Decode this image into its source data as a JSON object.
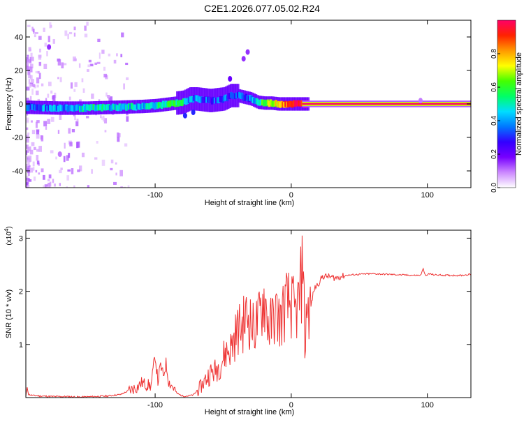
{
  "title": "C2E1.2026.077.05.02.R24",
  "chart_data": [
    {
      "type": "heatmap",
      "title": "C2E1.2026.077.05.02.R24",
      "xlabel": "Height of straight line (km)",
      "ylabel": "Frequency (Hz)",
      "xlim": [
        -195,
        132
      ],
      "ylim": [
        -50,
        50
      ],
      "xticks": [
        -100,
        0,
        100
      ],
      "yticks": [
        -40,
        -20,
        0,
        20,
        40
      ],
      "xtick_labels": [
        "-100",
        "0",
        "100"
      ],
      "ytick_labels": [
        "-40",
        "-20",
        "0",
        "20",
        "40"
      ],
      "colorbar": {
        "label": "Normalized spectral amplitude",
        "range": [
          0,
          1
        ],
        "ticks": [
          "0.0",
          "0.2",
          "0.4",
          "0.6",
          "0.8"
        ],
        "tick_values": [
          0,
          0.2,
          0.4,
          0.6,
          0.8
        ],
        "stops": [
          "#ffffff",
          "#cc88ff",
          "#7700ff",
          "#3300ff",
          "#0077ff",
          "#00ddff",
          "#00ff66",
          "#44ff00",
          "#ffff00",
          "#ff9900",
          "#ff2200",
          "#ff0066"
        ]
      },
      "ridge": {
        "x": [
          -195,
          -170,
          -150,
          -130,
          -110,
          -100,
          -90,
          -80,
          -75,
          -70,
          -60,
          -50,
          -45,
          -40,
          -35,
          -30,
          -25,
          -20,
          -15,
          -10,
          -5,
          0,
          5,
          10,
          132
        ],
        "freq": [
          -2,
          -2.5,
          -2.5,
          -2,
          -1.5,
          -1,
          0,
          1,
          3,
          3,
          2,
          3,
          5,
          5,
          4,
          3,
          1,
          0.5,
          0.5,
          0,
          0,
          0,
          0,
          0,
          0
        ],
        "amplitude": [
          0.35,
          0.4,
          0.5,
          0.45,
          0.45,
          0.5,
          0.55,
          0.5,
          0.4,
          0.35,
          0.3,
          0.35,
          0.3,
          0.3,
          0.35,
          0.4,
          0.5,
          0.6,
          0.7,
          0.8,
          0.85,
          0.9,
          0.95,
          1.0,
          1.0
        ]
      },
      "features": [
        {
          "x": -35,
          "freq": 27,
          "amplitude": 0.15
        },
        {
          "x": -32,
          "freq": 31,
          "amplitude": 0.15
        },
        {
          "x": -45,
          "freq": 15,
          "amplitude": 0.2
        },
        {
          "x": -78,
          "freq": -7,
          "amplitude": 0.3
        },
        {
          "x": -72,
          "freq": -5,
          "amplitude": 0.3
        },
        {
          "x": -178,
          "freq": 34,
          "amplitude": 0.15
        },
        {
          "x": -170,
          "freq": -30,
          "amplitude": 0.1
        },
        {
          "x": 95,
          "freq": 2,
          "amplitude": 0.1
        }
      ]
    },
    {
      "type": "line",
      "xlabel": "Height of straight line (km)",
      "ylabel": "SNR (10 * v/v)",
      "scale_label": "(x10",
      "scale_exponent": "4",
      "scale_suffix": ")",
      "xlim": [
        -195,
        132
      ],
      "ylim": [
        0,
        3.15
      ],
      "xticks": [
        -100,
        0,
        100
      ],
      "yticks": [
        1,
        2,
        3
      ],
      "xtick_labels": [
        "-100",
        "0",
        "100"
      ],
      "ytick_labels": [
        "1",
        "2",
        "3"
      ],
      "series": [
        {
          "name": "SNR",
          "color": "#ee3333",
          "x": [
            -195,
            -194,
            -193,
            -190,
            -185,
            -175,
            -165,
            -155,
            -145,
            -135,
            -125,
            -118,
            -113,
            -110,
            -107,
            -103,
            -100,
            -98,
            -96,
            -94,
            -92,
            -90,
            -87,
            -84,
            -80,
            -76,
            -72,
            -68,
            -64,
            -60,
            -56,
            -52,
            -48,
            -44,
            -40,
            -36,
            -32,
            -28,
            -24,
            -20,
            -16,
            -12,
            -8,
            -4,
            0,
            3,
            6,
            8,
            9,
            10,
            11,
            12,
            14,
            17,
            20,
            23,
            27,
            32,
            40,
            50,
            60,
            70,
            80,
            90,
            95,
            97,
            99,
            101,
            105,
            115,
            125,
            132
          ],
          "y": [
            0.02,
            0.2,
            0.06,
            0.04,
            0.03,
            0.02,
            0.02,
            0.01,
            0.02,
            0.03,
            0.06,
            0.15,
            0.2,
            0.28,
            0.25,
            0.22,
            0.8,
            0.3,
            0.6,
            0.4,
            0.65,
            0.3,
            0.2,
            0.08,
            0.03,
            0.03,
            0.05,
            0.15,
            0.3,
            0.45,
            0.5,
            0.65,
            0.85,
            0.95,
            1.25,
            1.35,
            1.55,
            1.3,
            1.45,
            1.9,
            1.3,
            1.6,
            1.45,
            1.75,
            1.75,
            1.55,
            1.85,
            2.3,
            3.15,
            0.55,
            1.8,
            1.6,
            1.7,
            2.05,
            2.15,
            2.28,
            2.28,
            2.25,
            2.3,
            2.32,
            2.33,
            2.32,
            2.31,
            2.3,
            2.3,
            2.42,
            2.28,
            2.33,
            2.31,
            2.3,
            2.3,
            2.32
          ]
        }
      ]
    }
  ]
}
